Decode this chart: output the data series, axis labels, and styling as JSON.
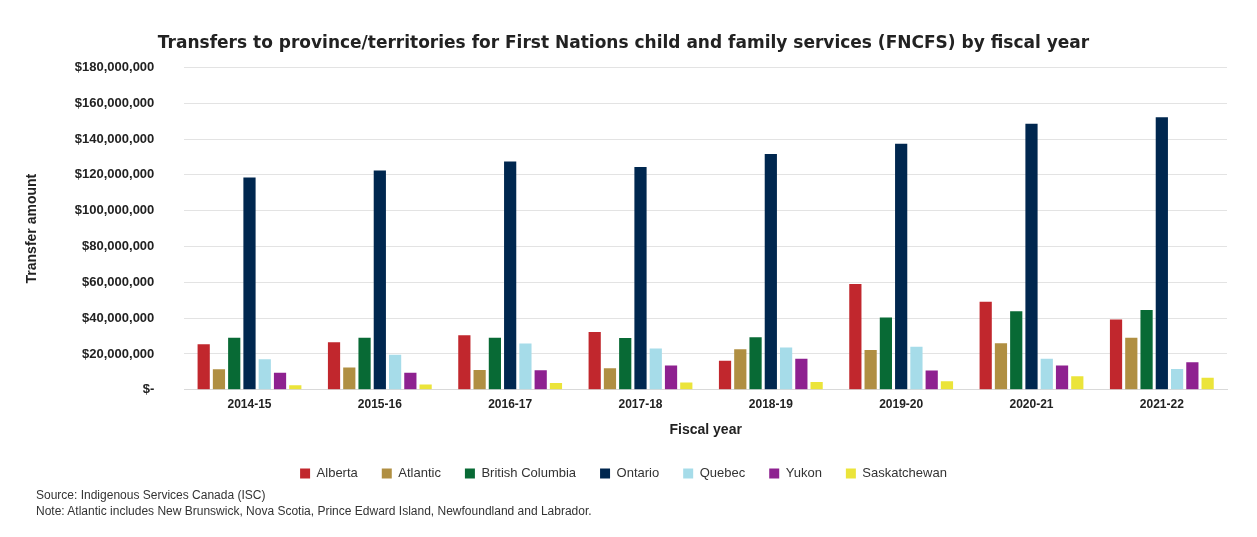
{
  "chart_data": {
    "type": "bar",
    "title": "Transfers to province/territories for First Nations child and family services (FNCFS) by fiscal year",
    "xlabel": "Fiscal year",
    "ylabel": "Transfer amount",
    "categories": [
      "2014-15",
      "2015-16",
      "2016-17",
      "2017-18",
      "2018-19",
      "2019-20",
      "2020-21",
      "2021-22"
    ],
    "series": [
      {
        "name": "Alberta",
        "color": "#c1272d",
        "values": [
          25500000,
          26500000,
          30400000,
          32300000,
          16200000,
          59000000,
          49100000,
          39300000
        ]
      },
      {
        "name": "Atlantic",
        "color": "#b08f42",
        "values": [
          11500000,
          12500000,
          11100000,
          12000000,
          22700000,
          22200000,
          26000000,
          29100000
        ]
      },
      {
        "name": "British Columbia",
        "color": "#086a35",
        "values": [
          29000000,
          29000000,
          29000000,
          28900000,
          29400000,
          40300000,
          43800000,
          44600000
        ]
      },
      {
        "name": "Ontario",
        "color": "#00274f",
        "values": [
          118500000,
          122500000,
          127400000,
          124400000,
          131600000,
          137400000,
          148500000,
          152100000
        ]
      },
      {
        "name": "Quebec",
        "color": "#a6dce9",
        "values": [
          17000000,
          19500000,
          25800000,
          23100000,
          23600000,
          24100000,
          17400000,
          11600000
        ]
      },
      {
        "name": "Yukon",
        "color": "#8e2190",
        "values": [
          9500000,
          9500000,
          10900000,
          13500000,
          17400000,
          10800000,
          13500000,
          15400000
        ]
      },
      {
        "name": "Saskatchewan",
        "color": "#ebe43a",
        "values": [
          2500000,
          3000000,
          3800000,
          4100000,
          4400000,
          4800000,
          7500000,
          6700000
        ]
      }
    ],
    "ylim": [
      0,
      180000000
    ],
    "yticks": [
      {
        "value": 0,
        "label": "$-"
      },
      {
        "value": 20000000,
        "label": "$20,000,000"
      },
      {
        "value": 40000000,
        "label": "$40,000,000"
      },
      {
        "value": 60000000,
        "label": "$60,000,000"
      },
      {
        "value": 80000000,
        "label": "$80,000,000"
      },
      {
        "value": 100000000,
        "label": "$100,000,000"
      },
      {
        "value": 120000000,
        "label": "$120,000,000"
      },
      {
        "value": 140000000,
        "label": "$140,000,000"
      },
      {
        "value": 160000000,
        "label": "$160,000,000"
      },
      {
        "value": 180000000,
        "label": "$180,000,000"
      }
    ],
    "grid": "y",
    "legend": "bottom",
    "annotations": [
      "Source: Indigenous Services Canada (ISC)",
      "Note: Atlantic includes New Brunswick, Nova Scotia, Prince Edward Island, Newfoundland and Labrador."
    ]
  }
}
